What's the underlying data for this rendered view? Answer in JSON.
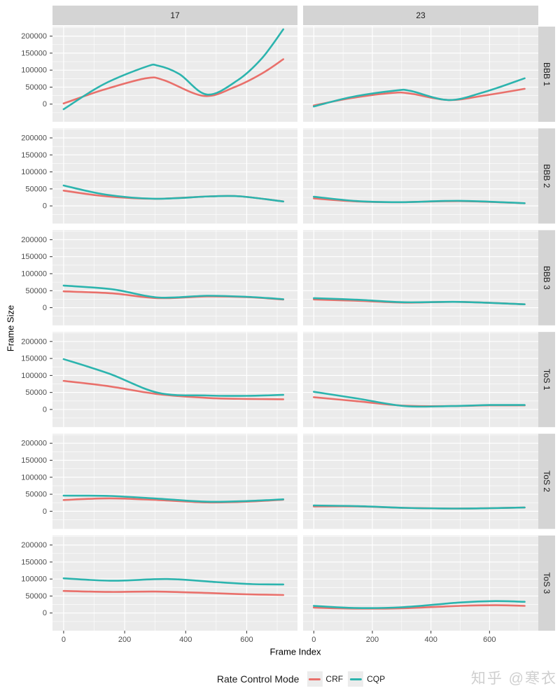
{
  "watermark": {
    "text": "知乎 @寒衣"
  },
  "chart_data": {
    "type": "line",
    "title": "",
    "xlabel": "Frame Index",
    "ylabel": "Frame Size",
    "legend": {
      "title": "Rate Control Mode",
      "entries": [
        "CRF",
        "CQP"
      ],
      "position": "bottom"
    },
    "facets": {
      "col_labels": [
        "17",
        "23"
      ],
      "row_labels": [
        "BBB 1",
        "BBB 2",
        "BBB 3",
        "ToS 1",
        "ToS 2",
        "ToS 3"
      ]
    },
    "x_ticks": [
      0,
      200,
      400,
      600
    ],
    "x_minor": [
      100,
      300,
      500,
      700
    ],
    "y_ticks": [
      0,
      50000,
      100000,
      150000,
      200000
    ],
    "y_minor": [
      -25000,
      25000,
      75000,
      125000,
      175000,
      225000
    ],
    "xlim": [
      -36.5,
      766.5
    ],
    "ylim": [
      -52000,
      228000
    ],
    "grid": true,
    "series_colors": {
      "CRF": "#e9706b",
      "CQP": "#2cb4ae"
    },
    "theme": {
      "panel_bg": "#EBEBEB",
      "strip_bg": "#D4D4D4",
      "grid": "#FFFFFF",
      "tick_label": "#4D4D4D",
      "strip_text": "#1A1A1A",
      "axis_title": "#000000",
      "tick_mark": "#333333",
      "watermark_color": "#CFCFCF",
      "legend_key_bg": "#ECECEC"
    },
    "panels": [
      {
        "row": "BBB 1",
        "col": "17",
        "series": [
          {
            "name": "CRF",
            "points": [
              [
                0,
                2000
              ],
              [
                130,
                42000
              ],
              [
                270,
                76000
              ],
              [
                330,
                70000
              ],
              [
                460,
                24000
              ],
              [
                560,
                50000
              ],
              [
                650,
                90000
              ],
              [
                720,
                132000
              ]
            ]
          },
          {
            "name": "CQP",
            "points": [
              [
                0,
                -15000
              ],
              [
                130,
                58000
              ],
              [
                270,
                110000
              ],
              [
                310,
                113000
              ],
              [
                380,
                88000
              ],
              [
                470,
                28000
              ],
              [
                570,
                70000
              ],
              [
                650,
                135000
              ],
              [
                720,
                220000
              ]
            ]
          }
        ]
      },
      {
        "row": "BBB 1",
        "col": "23",
        "series": [
          {
            "name": "CRF",
            "points": [
              [
                0,
                -4000
              ],
              [
                130,
                18000
              ],
              [
                270,
                33000
              ],
              [
                330,
                31000
              ],
              [
                460,
                12000
              ],
              [
                580,
                25000
              ],
              [
                720,
                45000
              ]
            ]
          },
          {
            "name": "CQP",
            "points": [
              [
                0,
                -7000
              ],
              [
                130,
                21000
              ],
              [
                280,
                40000
              ],
              [
                330,
                39000
              ],
              [
                460,
                12000
              ],
              [
                580,
                35000
              ],
              [
                720,
                76000
              ]
            ]
          }
        ]
      },
      {
        "row": "BBB 2",
        "col": "17",
        "series": [
          {
            "name": "CRF",
            "points": [
              [
                0,
                45000
              ],
              [
                140,
                28000
              ],
              [
                300,
                21000
              ],
              [
                480,
                28000
              ],
              [
                580,
                28000
              ],
              [
                720,
                13000
              ]
            ]
          },
          {
            "name": "CQP",
            "points": [
              [
                0,
                60000
              ],
              [
                140,
                33000
              ],
              [
                300,
                21000
              ],
              [
                480,
                28000
              ],
              [
                580,
                28000
              ],
              [
                720,
                13000
              ]
            ]
          }
        ]
      },
      {
        "row": "BBB 2",
        "col": "23",
        "series": [
          {
            "name": "CRF",
            "points": [
              [
                0,
                22000
              ],
              [
                150,
                13000
              ],
              [
                300,
                11000
              ],
              [
                500,
                14000
              ],
              [
                720,
                8000
              ]
            ]
          },
          {
            "name": "CQP",
            "points": [
              [
                0,
                27000
              ],
              [
                150,
                14000
              ],
              [
                300,
                11000
              ],
              [
                500,
                15000
              ],
              [
                720,
                8000
              ]
            ]
          }
        ]
      },
      {
        "row": "BBB 3",
        "col": "17",
        "series": [
          {
            "name": "CRF",
            "points": [
              [
                0,
                48000
              ],
              [
                160,
                42000
              ],
              [
                310,
                28000
              ],
              [
                470,
                33000
              ],
              [
                600,
                31000
              ],
              [
                720,
                24000
              ]
            ]
          },
          {
            "name": "CQP",
            "points": [
              [
                0,
                65000
              ],
              [
                160,
                54000
              ],
              [
                310,
                30000
              ],
              [
                470,
                35000
              ],
              [
                600,
                32000
              ],
              [
                720,
                25000
              ]
            ]
          }
        ]
      },
      {
        "row": "BBB 3",
        "col": "23",
        "series": [
          {
            "name": "CRF",
            "points": [
              [
                0,
                24000
              ],
              [
                160,
                20000
              ],
              [
                310,
                15000
              ],
              [
                500,
                17000
              ],
              [
                720,
                10000
              ]
            ]
          },
          {
            "name": "CQP",
            "points": [
              [
                0,
                28000
              ],
              [
                160,
                23000
              ],
              [
                310,
                16000
              ],
              [
                500,
                17000
              ],
              [
                720,
                10000
              ]
            ]
          }
        ]
      },
      {
        "row": "ToS 1",
        "col": "17",
        "series": [
          {
            "name": "CRF",
            "points": [
              [
                0,
                84000
              ],
              [
                150,
                68000
              ],
              [
                310,
                45000
              ],
              [
                470,
                34000
              ],
              [
                600,
                31000
              ],
              [
                720,
                30000
              ]
            ]
          },
          {
            "name": "CQP",
            "points": [
              [
                0,
                148000
              ],
              [
                150,
                105000
              ],
              [
                310,
                49000
              ],
              [
                470,
                41000
              ],
              [
                600,
                40000
              ],
              [
                720,
                43000
              ]
            ]
          }
        ]
      },
      {
        "row": "ToS 1",
        "col": "23",
        "series": [
          {
            "name": "CRF",
            "points": [
              [
                0,
                36000
              ],
              [
                150,
                24000
              ],
              [
                310,
                11000
              ],
              [
                470,
                10000
              ],
              [
                600,
                12000
              ],
              [
                720,
                12000
              ]
            ]
          },
          {
            "name": "CQP",
            "points": [
              [
                0,
                52000
              ],
              [
                150,
                32000
              ],
              [
                310,
                10000
              ],
              [
                470,
                10000
              ],
              [
                600,
                13000
              ],
              [
                720,
                13000
              ]
            ]
          }
        ]
      },
      {
        "row": "ToS 2",
        "col": "17",
        "series": [
          {
            "name": "CRF",
            "points": [
              [
                0,
                33000
              ],
              [
                150,
                38000
              ],
              [
                310,
                33000
              ],
              [
                470,
                26000
              ],
              [
                600,
                28000
              ],
              [
                720,
                34000
              ]
            ]
          },
          {
            "name": "CQP",
            "points": [
              [
                0,
                46000
              ],
              [
                150,
                45000
              ],
              [
                310,
                37000
              ],
              [
                470,
                28000
              ],
              [
                600,
                30000
              ],
              [
                720,
                35000
              ]
            ]
          }
        ]
      },
      {
        "row": "ToS 2",
        "col": "23",
        "series": [
          {
            "name": "CRF",
            "points": [
              [
                0,
                14000
              ],
              [
                150,
                14000
              ],
              [
                310,
                10000
              ],
              [
                470,
                8000
              ],
              [
                600,
                9000
              ],
              [
                720,
                11000
              ]
            ]
          },
          {
            "name": "CQP",
            "points": [
              [
                0,
                17000
              ],
              [
                150,
                15000
              ],
              [
                310,
                10000
              ],
              [
                470,
                8000
              ],
              [
                600,
                9000
              ],
              [
                720,
                11000
              ]
            ]
          }
        ]
      },
      {
        "row": "ToS 3",
        "col": "17",
        "series": [
          {
            "name": "CRF",
            "points": [
              [
                0,
                65000
              ],
              [
                150,
                62000
              ],
              [
                300,
                63000
              ],
              [
                470,
                59000
              ],
              [
                600,
                55000
              ],
              [
                720,
                53000
              ]
            ]
          },
          {
            "name": "CQP",
            "points": [
              [
                0,
                102000
              ],
              [
                160,
                95000
              ],
              [
                340,
                100000
              ],
              [
                500,
                91000
              ],
              [
                620,
                85000
              ],
              [
                720,
                84000
              ]
            ]
          }
        ]
      },
      {
        "row": "ToS 3",
        "col": "23",
        "series": [
          {
            "name": "CRF",
            "points": [
              [
                0,
                16000
              ],
              [
                140,
                13000
              ],
              [
                300,
                14000
              ],
              [
                500,
                21000
              ],
              [
                620,
                23000
              ],
              [
                720,
                21000
              ]
            ]
          },
          {
            "name": "CQP",
            "points": [
              [
                0,
                21000
              ],
              [
                140,
                15000
              ],
              [
                300,
                17000
              ],
              [
                500,
                31000
              ],
              [
                620,
                35000
              ],
              [
                720,
                33000
              ]
            ]
          }
        ]
      }
    ]
  }
}
